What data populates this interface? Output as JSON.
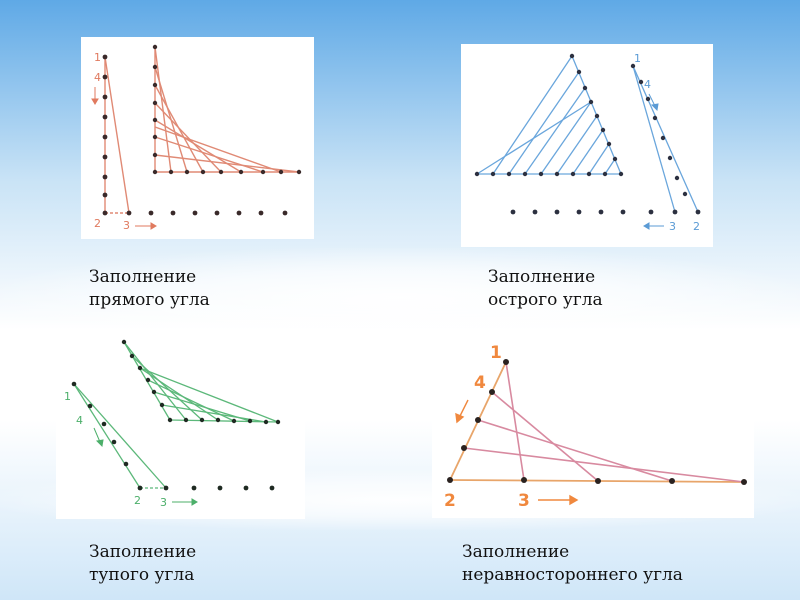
{
  "panels": [
    {
      "id": "right-angle",
      "caption_line1": "Заполнение",
      "caption_line2": "прямого угла",
      "point_labels": {
        "p1": "1",
        "p4": "4",
        "p2": "2",
        "p3": "3"
      },
      "color": "#e07a5f"
    },
    {
      "id": "acute-angle",
      "caption_line1": "Заполнение",
      "caption_line2": "острого угла",
      "point_labels": {
        "p1": "1",
        "p4": "4",
        "p3": "3",
        "p2": "2"
      },
      "color": "#5b9bd5"
    },
    {
      "id": "obtuse-angle",
      "caption_line1": "Заполнение",
      "caption_line2": "тупого угла",
      "point_labels": {
        "p1": "1",
        "p4": "4",
        "p2": "2",
        "p3": "3"
      },
      "color": "#4caf6a"
    },
    {
      "id": "scalene-angle",
      "caption_line1": "Заполнение",
      "caption_line2": "неравностороннего угла",
      "point_labels": {
        "p1": "1",
        "p4": "4",
        "p2": "2",
        "p3": "3"
      },
      "color": "#f0883e"
    }
  ]
}
